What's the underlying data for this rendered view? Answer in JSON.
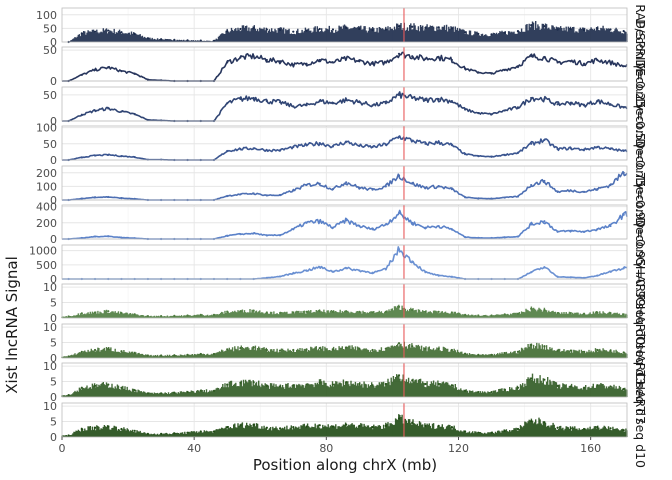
{
  "chart_data": {
    "type": "scatter",
    "xlabel": "Position along chrX (mb)",
    "ylabel": "Xist lncRNA Signal",
    "xlim": [
      0,
      171
    ],
    "x_ticks": [
      0,
      40,
      80,
      120,
      160
    ],
    "x_tick_labels": [
      "0",
      "40",
      "80",
      "120",
      "160"
    ],
    "grid": true,
    "highlight_line": {
      "x": 103.5,
      "color": "#e8595b"
    },
    "x": [
      2,
      6,
      10,
      14,
      18,
      22,
      26,
      30,
      34,
      38,
      42,
      46,
      50,
      54,
      58,
      62,
      66,
      70,
      74,
      78,
      82,
      86,
      90,
      94,
      98,
      102,
      106,
      110,
      114,
      118,
      122,
      126,
      130,
      134,
      138,
      142,
      146,
      150,
      154,
      158,
      162,
      166,
      170
    ],
    "panels": [
      {
        "strip": "Raw RAP/SPRITE",
        "color": "#1b2a4a",
        "ylim": [
          0,
          125
        ],
        "y_ticks": [
          0,
          50,
          100
        ],
        "y_tick_labels": [
          "0",
          "50",
          "100"
        ],
        "values": [
          0,
          32,
          38,
          42,
          36,
          30,
          14,
          10,
          8,
          6,
          5,
          4,
          40,
          48,
          50,
          46,
          44,
          38,
          42,
          48,
          46,
          52,
          48,
          44,
          46,
          58,
          56,
          52,
          54,
          50,
          36,
          30,
          28,
          34,
          40,
          62,
          58,
          46,
          48,
          44,
          50,
          46,
          40
        ]
      },
      {
        "strip": "Decon γ=0.25",
        "color": "#27355c",
        "ylim": [
          0,
          55
        ],
        "y_ticks": [
          0,
          50
        ],
        "y_tick_labels": [
          "0",
          "50"
        ],
        "values": [
          0,
          10,
          18,
          22,
          16,
          12,
          2,
          1,
          0,
          0,
          0,
          0,
          30,
          38,
          40,
          34,
          32,
          26,
          28,
          34,
          30,
          36,
          32,
          28,
          30,
          44,
          40,
          36,
          38,
          34,
          20,
          14,
          12,
          18,
          24,
          40,
          38,
          30,
          32,
          28,
          34,
          30,
          24
        ]
      },
      {
        "strip": "Decon γ=0.50",
        "color": "#304574",
        "ylim": [
          0,
          65
        ],
        "y_ticks": [
          0,
          50
        ],
        "y_tick_labels": [
          "0",
          "50"
        ],
        "values": [
          0,
          12,
          20,
          24,
          18,
          13,
          2,
          1,
          0,
          0,
          0,
          0,
          34,
          42,
          44,
          38,
          36,
          28,
          30,
          38,
          34,
          40,
          36,
          30,
          34,
          50,
          44,
          40,
          42,
          38,
          22,
          15,
          13,
          20,
          26,
          44,
          42,
          32,
          35,
          30,
          38,
          32,
          26
        ]
      },
      {
        "strip": "Decon γ=0.75",
        "color": "#3a5590",
        "ylim": [
          0,
          105
        ],
        "y_ticks": [
          0,
          50,
          100
        ],
        "y_tick_labels": [
          "0",
          "50",
          "100"
        ],
        "values": [
          0,
          8,
          14,
          16,
          12,
          9,
          1,
          1,
          0,
          0,
          0,
          0,
          28,
          34,
          36,
          30,
          30,
          40,
          46,
          52,
          42,
          56,
          44,
          40,
          48,
          72,
          60,
          50,
          54,
          46,
          18,
          12,
          10,
          16,
          22,
          50,
          62,
          34,
          36,
          32,
          40,
          34,
          28
        ]
      },
      {
        "strip": "Decon γ=0.90",
        "color": "#4d6fb3",
        "ylim": [
          0,
          250
        ],
        "y_ticks": [
          0,
          100,
          200
        ],
        "y_tick_labels": [
          "0",
          "100",
          "200"
        ],
        "values": [
          0,
          10,
          20,
          22,
          14,
          8,
          0,
          0,
          0,
          0,
          0,
          0,
          30,
          42,
          48,
          34,
          36,
          70,
          110,
          120,
          80,
          130,
          90,
          76,
          100,
          180,
          120,
          90,
          100,
          80,
          20,
          12,
          10,
          18,
          26,
          110,
          140,
          60,
          70,
          60,
          80,
          110,
          200
        ]
      },
      {
        "strip": "Decon γ=0.95",
        "color": "#5b82c9",
        "ylim": [
          0,
          420
        ],
        "y_ticks": [
          0,
          200,
          400
        ],
        "y_tick_labels": [
          "0",
          "200",
          "400"
        ],
        "values": [
          0,
          12,
          30,
          34,
          18,
          10,
          0,
          0,
          0,
          0,
          0,
          0,
          40,
          60,
          70,
          44,
          48,
          120,
          200,
          220,
          140,
          230,
          160,
          120,
          180,
          320,
          200,
          140,
          160,
          120,
          24,
          14,
          12,
          22,
          30,
          180,
          220,
          90,
          100,
          90,
          120,
          160,
          300
        ]
      },
      {
        "strip": "Decon γ=0.99",
        "color": "#6a90d2",
        "ylim": [
          0,
          1200
        ],
        "y_ticks": [
          0,
          500,
          1000
        ],
        "y_tick_labels": [
          "0",
          "500",
          "1000"
        ],
        "values": [
          0,
          0,
          0,
          0,
          0,
          0,
          0,
          0,
          0,
          0,
          0,
          0,
          0,
          0,
          0,
          40,
          90,
          200,
          300,
          420,
          260,
          380,
          300,
          220,
          340,
          1050,
          620,
          240,
          120,
          80,
          0,
          0,
          0,
          0,
          0,
          240,
          420,
          80,
          60,
          40,
          120,
          260,
          380
        ]
      },
      {
        "strip": "CHART seq d0",
        "color": "#4e7c3f",
        "ylim": [
          0,
          11
        ],
        "y_ticks": [
          0,
          5,
          10
        ],
        "y_tick_labels": [
          "0",
          "5",
          "10"
        ],
        "values": [
          0.5,
          1.5,
          1.8,
          2.2,
          1.6,
          1.2,
          0.6,
          0.6,
          0.7,
          0.8,
          1.0,
          1.0,
          2.0,
          2.2,
          2.4,
          1.8,
          1.6,
          1.8,
          2.0,
          2.2,
          2.0,
          2.2,
          2.0,
          1.8,
          2.0,
          3.6,
          2.6,
          2.0,
          2.0,
          1.8,
          1.0,
          0.8,
          0.8,
          1.2,
          1.4,
          3.0,
          2.6,
          1.6,
          1.6,
          1.4,
          1.8,
          1.6,
          1.2
        ]
      },
      {
        "strip": "CHART seq d3",
        "color": "#3f6a30",
        "ylim": [
          0,
          11
        ],
        "y_ticks": [
          0,
          5,
          10
        ],
        "y_tick_labels": [
          "0",
          "5",
          "10"
        ],
        "values": [
          0.5,
          2.0,
          2.6,
          3.0,
          2.2,
          1.6,
          0.8,
          0.8,
          0.9,
          1.0,
          1.3,
          1.3,
          2.8,
          3.2,
          3.4,
          2.6,
          2.4,
          2.6,
          2.8,
          3.2,
          2.8,
          3.4,
          3.0,
          2.6,
          3.0,
          4.8,
          3.8,
          3.0,
          3.0,
          2.6,
          1.4,
          1.0,
          1.0,
          1.6,
          2.0,
          4.2,
          3.8,
          2.4,
          2.4,
          2.0,
          2.6,
          2.4,
          1.8
        ]
      },
      {
        "strip": "CHART seq d7",
        "color": "#2f5a22",
        "ylim": [
          0,
          11
        ],
        "y_ticks": [
          0,
          5,
          10
        ],
        "y_tick_labels": [
          "0",
          "5",
          "10"
        ],
        "values": [
          0.6,
          3.0,
          3.6,
          4.0,
          3.0,
          2.2,
          1.2,
          1.2,
          1.4,
          1.6,
          2.0,
          2.0,
          4.0,
          4.6,
          4.8,
          3.6,
          3.4,
          3.8,
          4.0,
          4.6,
          4.0,
          4.8,
          4.2,
          3.8,
          4.2,
          7.0,
          5.4,
          4.2,
          4.2,
          3.8,
          2.0,
          1.6,
          1.6,
          2.4,
          3.0,
          6.0,
          5.6,
          3.6,
          3.4,
          3.0,
          3.8,
          3.4,
          2.6
        ]
      },
      {
        "strip": "CHART seq d10",
        "color": "#1f4a14",
        "ylim": [
          0,
          11
        ],
        "y_ticks": [
          0,
          5,
          10
        ],
        "y_tick_labels": [
          "0",
          "5",
          "10"
        ],
        "values": [
          0.5,
          2.6,
          3.0,
          3.4,
          2.6,
          2.0,
          1.0,
          1.0,
          1.2,
          1.4,
          1.8,
          1.8,
          3.2,
          3.8,
          4.0,
          3.0,
          2.8,
          3.2,
          3.4,
          3.8,
          3.4,
          4.0,
          3.6,
          3.2,
          3.6,
          6.0,
          4.6,
          3.6,
          3.6,
          3.2,
          1.8,
          1.4,
          1.4,
          2.0,
          2.6,
          5.2,
          4.8,
          3.0,
          2.8,
          2.6,
          3.2,
          2.8,
          2.2
        ]
      }
    ]
  }
}
